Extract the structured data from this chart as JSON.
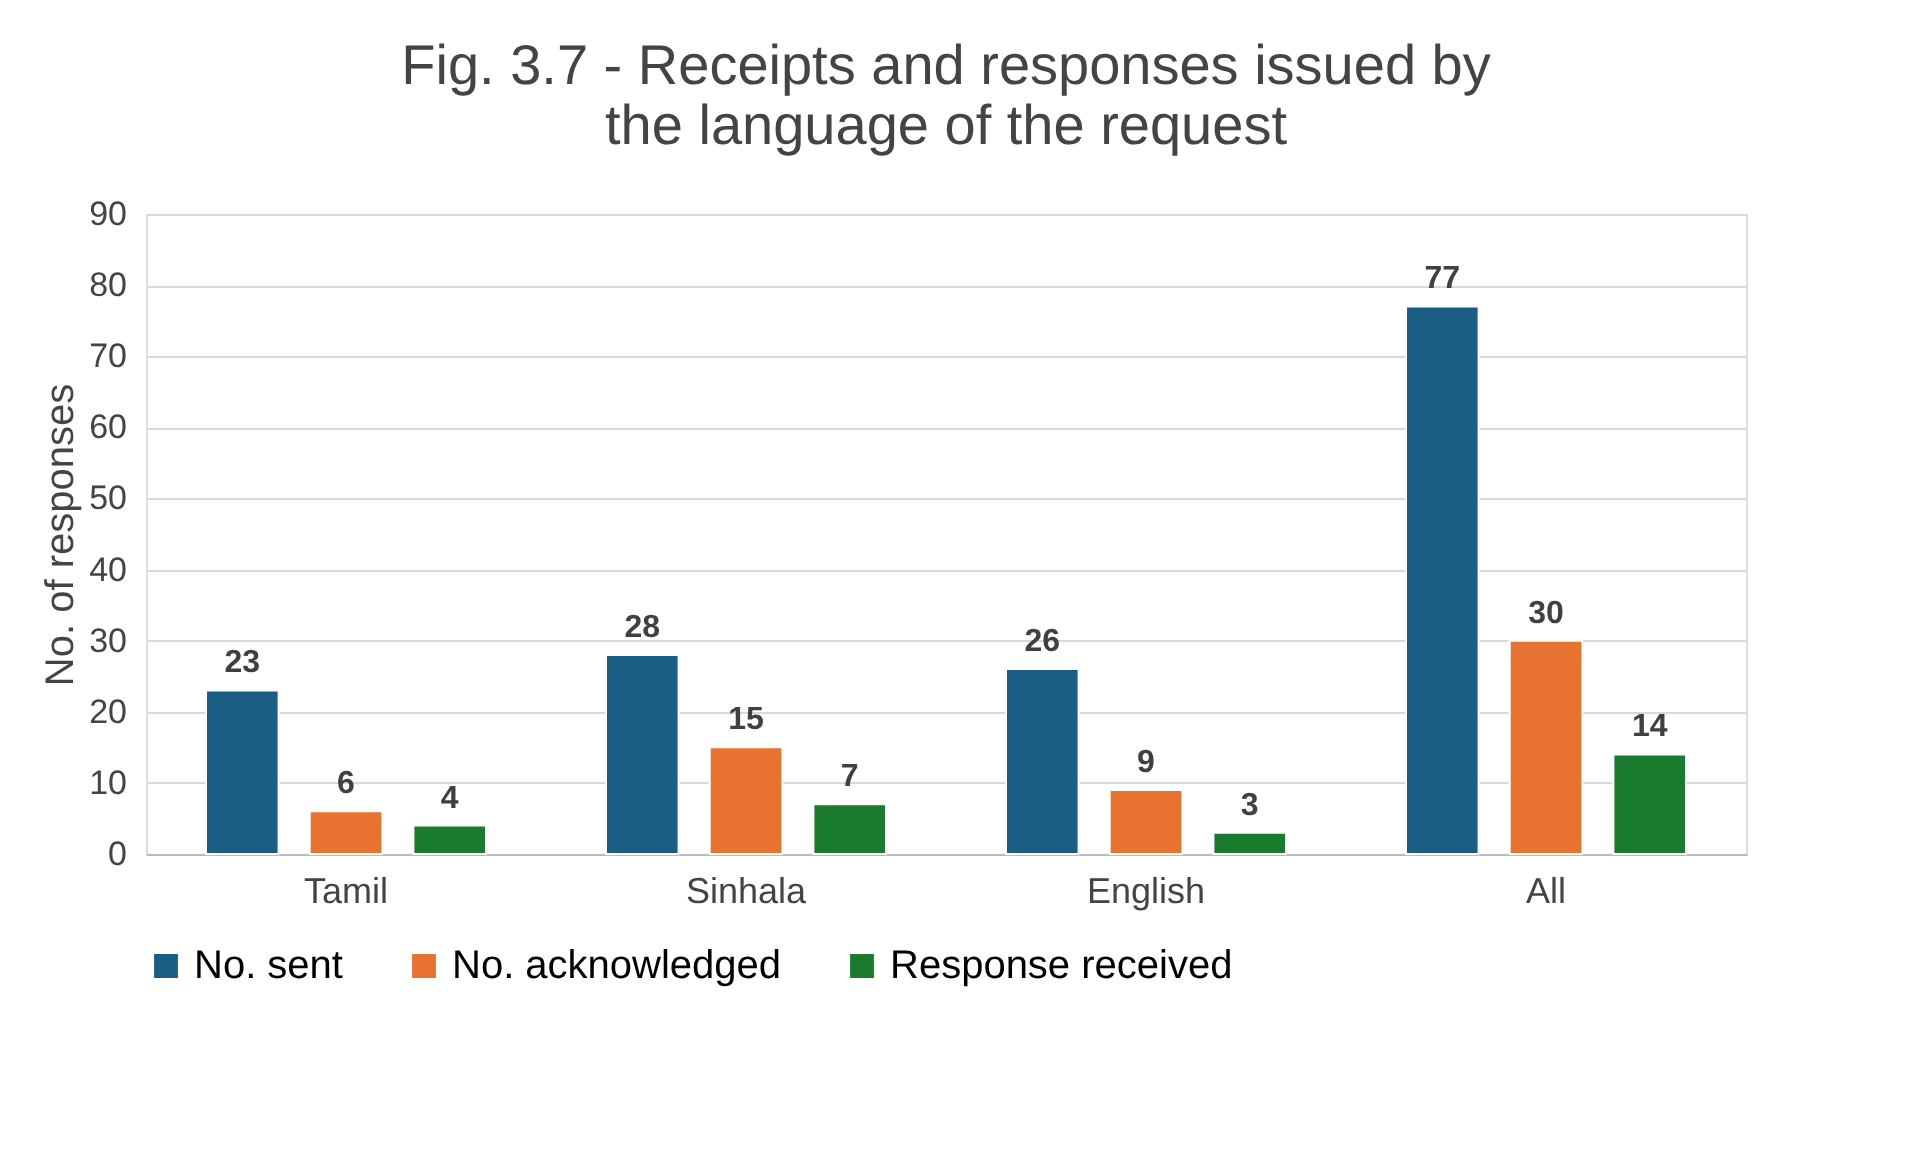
{
  "chart_data": {
    "type": "bar",
    "title": "Fig. 3.7 - Receipts and responses issued by the language of the request",
    "ylabel": "No. of responses",
    "categories": [
      "Tamil",
      "Sinhala",
      "English",
      "All"
    ],
    "series": [
      {
        "name": "No. sent",
        "color": "#1b5e84",
        "values": [
          23,
          28,
          26,
          77
        ]
      },
      {
        "name": "No. acknowledged",
        "color": "#e8722f",
        "values": [
          6,
          15,
          9,
          30
        ]
      },
      {
        "name": "Response received",
        "color": "#1a7a2e",
        "values": [
          4,
          7,
          3,
          14
        ]
      }
    ],
    "ylim": [
      0,
      90
    ],
    "yticks": [
      0,
      10,
      20,
      30,
      40,
      50,
      60,
      70,
      80,
      90
    ],
    "grid": "y",
    "legend": "bottom",
    "data_labels": true
  }
}
